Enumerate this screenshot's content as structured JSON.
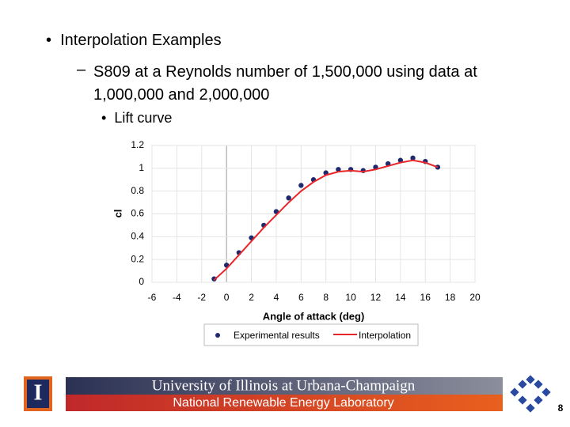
{
  "bullets": {
    "main": "Interpolation Examples",
    "sub": "S809 at a Reynolds number of 1,500,000 using data at 1,000,000 and 2,000,000",
    "subsub": "Lift curve"
  },
  "chart_data": {
    "type": "line",
    "x_label": "Angle of attack (deg)",
    "y_label": "cl",
    "x": [
      -1,
      0,
      1,
      2,
      3,
      4,
      5,
      6,
      7,
      8,
      9,
      10,
      11,
      12,
      13,
      14,
      15,
      16,
      17
    ],
    "series": [
      {
        "name": "Experimental results",
        "color": "#1f2a6e",
        "style": "markers",
        "values": [
          0.03,
          0.15,
          0.26,
          0.39,
          0.5,
          0.62,
          0.74,
          0.85,
          0.9,
          0.96,
          0.99,
          0.99,
          0.98,
          1.01,
          1.04,
          1.07,
          1.09,
          1.06,
          1.01
        ]
      },
      {
        "name": "Interpolation",
        "color": "#e8262a",
        "style": "line",
        "values": [
          0.02,
          0.12,
          0.24,
          0.36,
          0.48,
          0.59,
          0.7,
          0.8,
          0.88,
          0.94,
          0.97,
          0.98,
          0.97,
          0.99,
          1.02,
          1.05,
          1.07,
          1.05,
          1.01
        ]
      }
    ],
    "xlim": [
      -6,
      20
    ],
    "xticks": [
      -6,
      -4,
      -2,
      0,
      2,
      4,
      6,
      8,
      10,
      12,
      14,
      16,
      18,
      20
    ],
    "ylim": [
      0,
      1.2
    ],
    "yticks": [
      0,
      0.2,
      0.4,
      0.6,
      0.8,
      1,
      1.2
    ],
    "grid": true,
    "legend": "bottom"
  },
  "footer": {
    "university": "University of Illinois at Urbana-Champaign",
    "lab": "National Renewable Energy Laboratory",
    "logo_letter": "I",
    "page": "8"
  }
}
